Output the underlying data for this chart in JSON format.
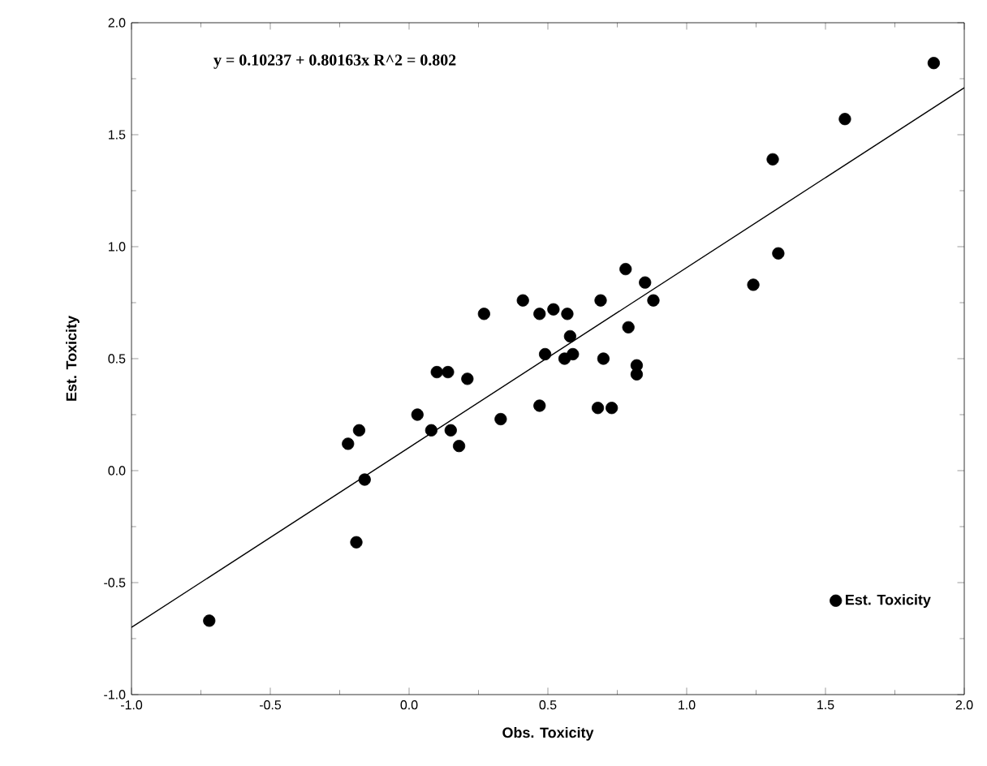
{
  "chart_data": {
    "type": "scatter",
    "xlabel": "Obs. Toxicity",
    "ylabel": "Est. Toxicity",
    "annotations": [
      "y = 0.10237 + 0.80163x   R^2 = 0.802"
    ],
    "xlim": [
      -1,
      2
    ],
    "ylim": [
      -1,
      2
    ],
    "xticks": [
      {
        "value": -1,
        "label": "-1.0"
      },
      {
        "value": -0.5,
        "label": "-0.5"
      },
      {
        "value": 0,
        "label": "0.0"
      },
      {
        "value": 0.5,
        "label": "0.5"
      },
      {
        "value": 1,
        "label": "1.0"
      },
      {
        "value": 1.5,
        "label": "1.5"
      },
      {
        "value": 2,
        "label": "2.0"
      }
    ],
    "yticks": [
      {
        "value": -1,
        "label": "-1.0"
      },
      {
        "value": -0.5,
        "label": "-0.5"
      },
      {
        "value": 0,
        "label": "0.0"
      },
      {
        "value": 0.5,
        "label": "0.5"
      },
      {
        "value": 1,
        "label": "1.0"
      },
      {
        "value": 1.5,
        "label": "1.5"
      },
      {
        "value": 2,
        "label": "2.0"
      }
    ],
    "grid": false,
    "legend": "bottom right",
    "marker": "circle",
    "series": [
      {
        "name": "Est. Toxicity",
        "type": "scatter",
        "color": "#000000",
        "x": [
          -0.72,
          -0.19,
          -0.22,
          -0.18,
          -0.16,
          0.03,
          0.08,
          0.15,
          0.18,
          0.1,
          0.14,
          0.21,
          0.33,
          0.27,
          0.41,
          0.47,
          0.47,
          0.49,
          0.52,
          0.57,
          0.69,
          0.78,
          0.85,
          0.88,
          0.79,
          0.58,
          0.56,
          0.59,
          0.7,
          0.82,
          0.82,
          0.68,
          0.73,
          1.24,
          1.33,
          1.89,
          1.57,
          1.31
        ],
        "values": [
          -0.67,
          -0.32,
          0.12,
          0.18,
          -0.04,
          0.25,
          0.18,
          0.18,
          0.11,
          0.44,
          0.44,
          0.41,
          0.23,
          0.7,
          0.76,
          0.7,
          0.29,
          0.52,
          0.72,
          0.7,
          0.76,
          0.9,
          0.84,
          0.76,
          0.64,
          0.6,
          0.5,
          0.52,
          0.5,
          0.47,
          0.43,
          0.28,
          0.28,
          0.83,
          0.97,
          1.82,
          1.57,
          1.39
        ]
      },
      {
        "type": "line",
        "line_style": "solid",
        "marker": "none",
        "color": "#000000",
        "x": [
          -1,
          2
        ],
        "values": [
          -0.7,
          1.71
        ]
      }
    ]
  }
}
